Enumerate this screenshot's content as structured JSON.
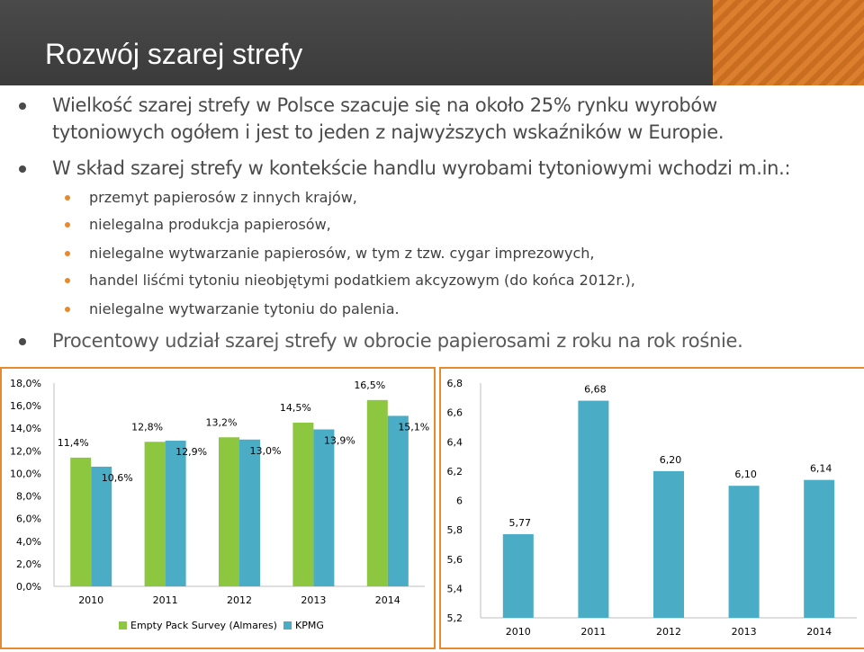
{
  "slide": {
    "title": "Rozwój szarej strefy",
    "bullets": [
      {
        "level": 1,
        "text": "Wielkość szarej strefy w Polsce szacuje się na około 25% rynku wyrobów"
      },
      {
        "level": 1,
        "text": "tytoniowych ogółem i jest to jeden z najwyższych wskaźników w Europie."
      },
      {
        "level": 1,
        "text": "W skład szarej strefy w kontekście handlu wyrobami tytoniowymi wchodzi m.in.:"
      },
      {
        "level": 2,
        "text": "przemyt papierosów z innych krajów,"
      },
      {
        "level": 2,
        "text": "nielegalna produkcja papierosów,"
      },
      {
        "level": 2,
        "text": "nielegalne wytwarzanie papierosów, w tym z tzw. cygar imprezowych,"
      },
      {
        "level": 2,
        "text": "handel liśćmi tytoniu nieobjętymi podatkiem akcyzowym (do końca 2012r.),"
      },
      {
        "level": 2,
        "text": "nielegalne wytwarzanie tytoniu do palenia."
      },
      {
        "level": 1,
        "text": "Procentowy udział szarej strefy w obrocie papierosami z roku na rok rośnie."
      }
    ]
  },
  "colors": {
    "green": "#8dc63f",
    "blue": "#4bacc6",
    "accent": "#e68a2e",
    "grid": "#d9d9d9"
  },
  "chart_data": [
    {
      "type": "bar",
      "categories": [
        "2010",
        "2011",
        "2012",
        "2013",
        "2014"
      ],
      "series": [
        {
          "name": "Empty Pack Survey (Almares)",
          "values": [
            11.4,
            12.8,
            13.2,
            14.5,
            16.5
          ],
          "labels": [
            "11,4%",
            "12,8%",
            "13,2%",
            "14,5%",
            "16,5%"
          ]
        },
        {
          "name": "KPMG",
          "values": [
            10.6,
            12.9,
            13.0,
            13.9,
            15.1
          ],
          "labels": [
            "10,6%",
            "12,9%",
            "13,0%",
            "13,9%",
            "15,1%"
          ]
        }
      ],
      "ylim": [
        0,
        18
      ],
      "yticks": [
        "0,0%",
        "2,0%",
        "4,0%",
        "6,0%",
        "8,0%",
        "10,0%",
        "12,0%",
        "14,0%",
        "16,0%",
        "18,0%"
      ],
      "legend": "bottom",
      "grid": false
    },
    {
      "type": "bar",
      "categories": [
        "2010",
        "2011",
        "2012",
        "2013",
        "2014"
      ],
      "values": [
        5.77,
        6.68,
        6.2,
        6.1,
        6.14
      ],
      "labels": [
        "5,77",
        "6,68",
        "6,20",
        "6,10",
        "6,14"
      ],
      "ylim": [
        5.2,
        6.8
      ],
      "yticks": [
        "5,2",
        "5,4",
        "5,6",
        "5,8",
        "6",
        "6,2",
        "6,4",
        "6,6",
        "6,8"
      ],
      "legend": "none",
      "grid": false
    }
  ]
}
